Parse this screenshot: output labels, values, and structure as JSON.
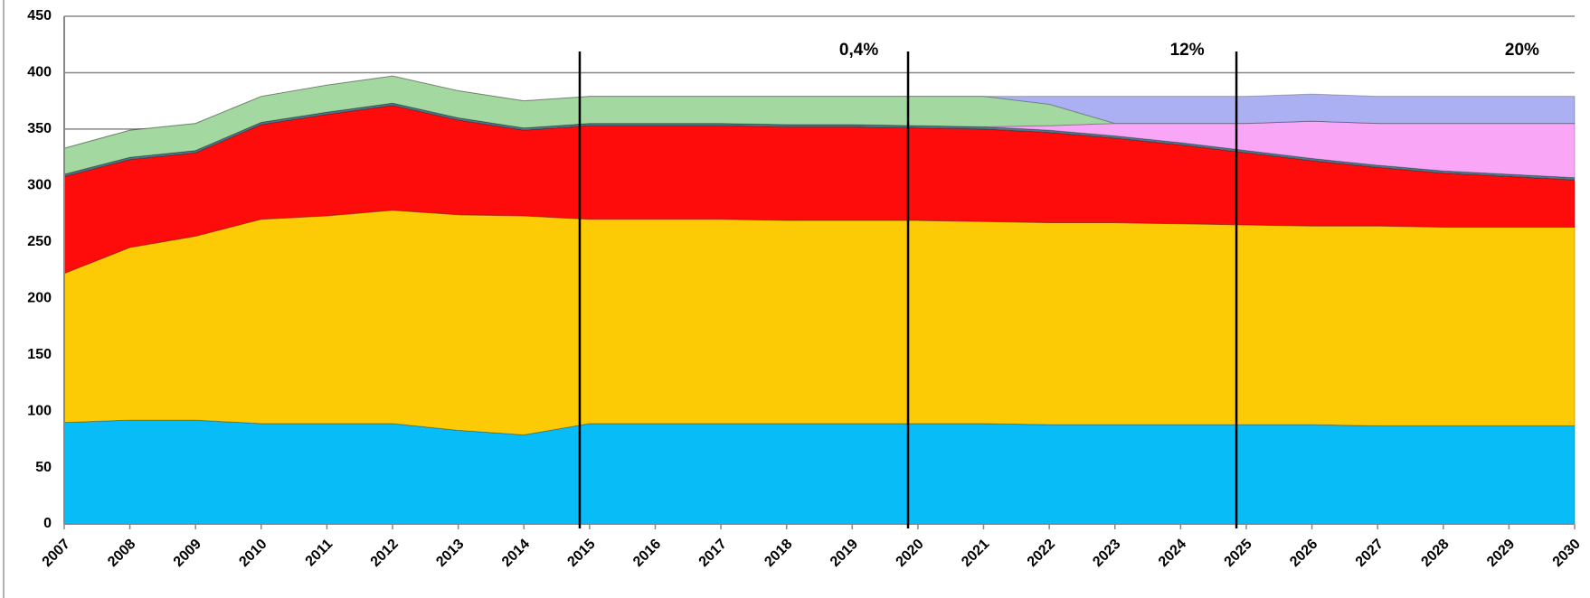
{
  "chart_data": {
    "type": "stacked_area",
    "categories": [
      "2007",
      "2008",
      "2009",
      "2010",
      "2011",
      "2012",
      "2013",
      "2014",
      "2015",
      "2016",
      "2017",
      "2018",
      "2019",
      "2020",
      "2021",
      "2022",
      "2023",
      "2024",
      "2025",
      "2026",
      "2027",
      "2028",
      "2029",
      "2030"
    ],
    "series": [
      {
        "color": "#08bcf8",
        "values": [
          90,
          92,
          92,
          89,
          89,
          89,
          83,
          79,
          89,
          89,
          89,
          89,
          89,
          89,
          89,
          88,
          88,
          88,
          88,
          88,
          87,
          87,
          87,
          87
        ]
      },
      {
        "color": "#fdca06",
        "values": [
          132,
          153,
          163,
          181,
          184,
          189,
          191,
          194,
          181,
          181,
          181,
          180,
          180,
          180,
          179,
          179,
          179,
          178,
          177,
          176,
          177,
          176,
          176,
          176
        ]
      },
      {
        "color": "#fe0b0b",
        "values": [
          86,
          78,
          74,
          84,
          90,
          93,
          84,
          76,
          83,
          83,
          83,
          83,
          83,
          82,
          82,
          80,
          75,
          70,
          64,
          58,
          52,
          48,
          45,
          42
        ]
      },
      {
        "color": "#4a7a8c",
        "values": [
          2,
          2,
          2,
          2,
          2,
          2,
          2,
          2,
          2,
          2,
          2,
          2,
          2,
          2,
          2,
          2,
          2,
          2,
          2,
          2,
          2,
          2,
          2,
          2
        ]
      },
      {
        "color": "#f9a6f7",
        "values": [
          0,
          0,
          0,
          0,
          0,
          0,
          0,
          0,
          0,
          0,
          0,
          0,
          0,
          0,
          0,
          4,
          11,
          17,
          24,
          33,
          37,
          42,
          45,
          48
        ]
      },
      {
        "color": "#a3d9a0",
        "values": [
          23,
          24,
          24,
          23,
          24,
          24,
          24,
          24,
          24,
          24,
          24,
          25,
          25,
          26,
          27,
          19,
          0,
          0,
          0,
          0,
          0,
          0,
          0,
          0
        ]
      },
      {
        "color": "#aab0f2",
        "values": [
          0,
          0,
          0,
          0,
          0,
          0,
          0,
          0,
          0,
          0,
          0,
          0,
          0,
          0,
          0,
          7,
          24,
          24,
          24,
          24,
          24,
          24,
          24,
          24
        ]
      }
    ],
    "annotations": [
      {
        "text": "0,4%"
      },
      {
        "text": "12%"
      },
      {
        "text": "20%"
      }
    ],
    "ylim": [
      0,
      450
    ],
    "yticks": [
      0,
      50,
      100,
      150,
      200,
      250,
      300,
      350,
      400,
      450
    ],
    "grid": true
  }
}
